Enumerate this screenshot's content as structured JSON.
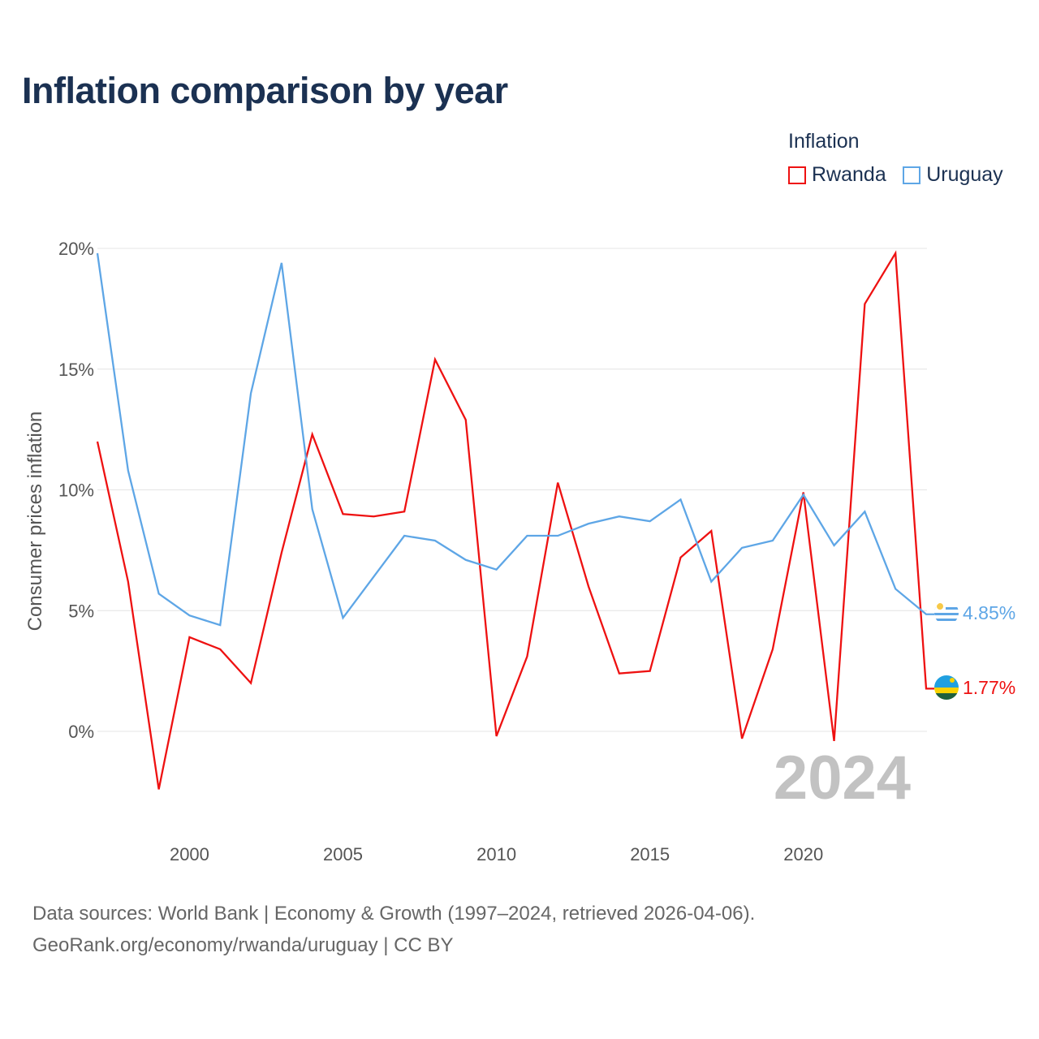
{
  "title": "Inflation comparison by year",
  "legend": {
    "title": "Inflation",
    "items": [
      {
        "label": "Rwanda",
        "color": "#ee1111"
      },
      {
        "label": "Uruguay",
        "color": "#5ea6e6"
      }
    ]
  },
  "chart_data": {
    "type": "line",
    "title": "Inflation comparison by year",
    "ylabel": "Consumer prices inflation",
    "xlabel": "",
    "ylim": [
      -3.7,
      20
    ],
    "xlim": [
      1997,
      2024
    ],
    "yticks": [
      0,
      5,
      10,
      15,
      20
    ],
    "ytick_labels": [
      "0%",
      "5%",
      "10%",
      "15%",
      "20%"
    ],
    "xticks": [
      2000,
      2005,
      2010,
      2015,
      2020
    ],
    "xtick_labels": [
      "2000",
      "2005",
      "2010",
      "2015",
      "2020"
    ],
    "grid": true,
    "legend_position": "top-right",
    "current_year_label": "2024",
    "x": [
      1997,
      1998,
      1999,
      2000,
      2001,
      2002,
      2003,
      2004,
      2005,
      2006,
      2007,
      2008,
      2009,
      2010,
      2011,
      2012,
      2013,
      2014,
      2015,
      2016,
      2017,
      2018,
      2019,
      2020,
      2021,
      2022,
      2023,
      2024
    ],
    "series": [
      {
        "name": "Rwanda",
        "color": "#ee1111",
        "end_label": "1.77%",
        "flag": "rwanda-flag-icon",
        "values": [
          12.0,
          6.2,
          -2.4,
          3.9,
          3.4,
          2.0,
          7.4,
          12.3,
          9.0,
          8.9,
          9.1,
          15.4,
          12.9,
          -0.2,
          3.1,
          10.3,
          6.0,
          2.4,
          2.5,
          7.2,
          8.3,
          -0.3,
          3.4,
          9.9,
          -0.4,
          17.7,
          19.8,
          1.77
        ]
      },
      {
        "name": "Uruguay",
        "color": "#5ea6e6",
        "end_label": "4.85%",
        "flag": "uruguay-flag-icon",
        "values": [
          19.8,
          10.8,
          5.7,
          4.8,
          4.4,
          14.0,
          19.4,
          9.2,
          4.7,
          6.4,
          8.1,
          7.9,
          7.1,
          6.7,
          8.1,
          8.1,
          8.6,
          8.9,
          8.7,
          9.6,
          6.2,
          7.6,
          7.9,
          9.8,
          7.7,
          9.1,
          5.9,
          4.85
        ]
      }
    ]
  },
  "footer": {
    "line1": "Data sources: World Bank | Economy & Growth (1997–2024, retrieved 2026-04-06).",
    "line2": "GeoRank.org/economy/rwanda/uruguay | CC BY"
  }
}
